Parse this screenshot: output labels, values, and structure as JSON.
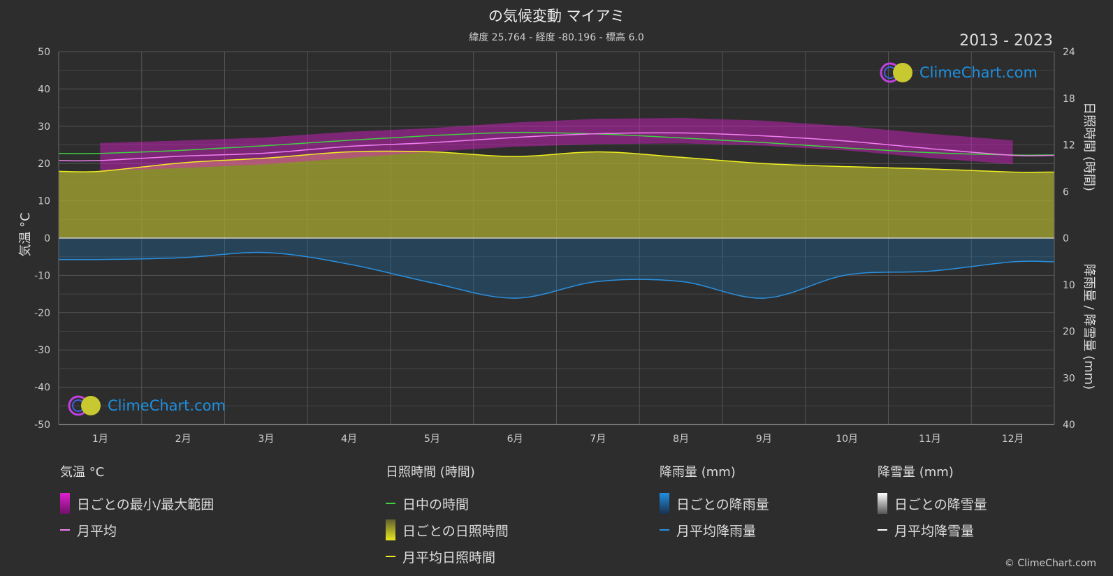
{
  "header": {
    "title": "の気候変動 マイアミ",
    "subtitle": "緯度 25.764 - 経度 -80.196 - 標高 6.0",
    "years": "2013 - 2023"
  },
  "brand": {
    "logo_text": "ClimeChart.com",
    "copyright": "© ClimeChart.com"
  },
  "axes": {
    "left_label": "気温 °C",
    "right_top_label": "日照時間 (時間)",
    "right_bottom_label": "降雨量 / 降雪量 (mm)"
  },
  "legend": {
    "temperature": {
      "heading": "気温 °C",
      "range": "日ごとの最小/最大範囲",
      "avg": "月平均"
    },
    "sunshine": {
      "heading": "日照時間 (時間)",
      "daylight": "日中の時間",
      "daily": "日ごとの日照時間",
      "avg": "月平均日照時間"
    },
    "rain": {
      "heading": "降雨量 (mm)",
      "daily": "日ごとの降雨量",
      "avg": "月平均降雨量"
    },
    "snow": {
      "heading": "降雪量 (mm)",
      "daily": "日ごとの降雪量",
      "avg": "月平均降雪量"
    }
  },
  "colors": {
    "background": "#2d2d2d",
    "temp_range": "#e020d0",
    "temp_avg": "#f080f0",
    "daylight": "#40d040",
    "sunshine_fill": "#a8a830",
    "sunshine_avg": "#f0f020",
    "rain_fill": "#1e6ea8",
    "rain_avg": "#2a90e0",
    "snow": "#ffffff"
  },
  "chart_data": {
    "type": "area",
    "categories": [
      "1月",
      "2月",
      "3月",
      "4月",
      "5月",
      "6月",
      "7月",
      "8月",
      "9月",
      "10月",
      "11月",
      "12月"
    ],
    "left_axis": {
      "ylim": [
        -50,
        50
      ],
      "ticks": [
        50,
        40,
        30,
        20,
        10,
        0,
        -10,
        -20,
        -30,
        -40,
        -50
      ]
    },
    "right_axis_sunshine": {
      "ylim": [
        0,
        24
      ],
      "ticks": [
        24,
        18,
        12,
        6,
        0
      ]
    },
    "right_axis_precip": {
      "ylim": [
        0,
        40
      ],
      "ticks": [
        10,
        20,
        30,
        40
      ]
    },
    "grid": true,
    "series": [
      {
        "name": "月平均",
        "unit": "°C",
        "values": [
          20.8,
          22.0,
          22.8,
          24.6,
          25.6,
          27.0,
          28.0,
          28.2,
          27.4,
          26.0,
          24.0,
          22.2
        ]
      },
      {
        "name": "日ごとの最小/最大範囲",
        "unit": "°C",
        "min": [
          18.0,
          18.8,
          19.8,
          21.5,
          23.2,
          24.5,
          25.2,
          25.4,
          24.8,
          23.5,
          21.5,
          19.8
        ],
        "max": [
          25.5,
          26.2,
          27.0,
          28.5,
          29.5,
          31.0,
          32.0,
          32.2,
          31.5,
          30.0,
          28.0,
          26.2
        ]
      },
      {
        "name": "日中の時間",
        "unit": "時間",
        "values": [
          10.9,
          11.3,
          11.9,
          12.6,
          13.2,
          13.6,
          13.4,
          12.9,
          12.3,
          11.6,
          11.0,
          10.7
        ]
      },
      {
        "name": "月平均日照時間",
        "unit": "時間",
        "values": [
          8.6,
          9.7,
          10.3,
          11.1,
          11.1,
          10.5,
          11.1,
          10.4,
          9.6,
          9.2,
          8.9,
          8.5
        ]
      },
      {
        "name": "月平均降雨量",
        "unit": "mm",
        "values": [
          4.6,
          4.2,
          3.1,
          5.6,
          9.6,
          12.9,
          9.3,
          9.3,
          12.9,
          7.9,
          7.1,
          5.1
        ]
      },
      {
        "name": "月平均降雪量",
        "unit": "mm",
        "values": [
          0,
          0,
          0,
          0,
          0,
          0,
          0,
          0,
          0,
          0,
          0,
          0
        ]
      }
    ]
  }
}
